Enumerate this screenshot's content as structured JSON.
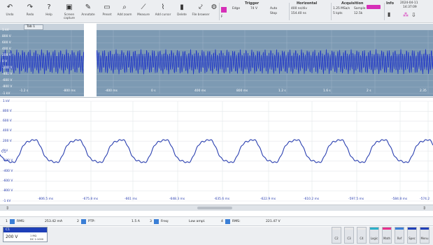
{
  "toolbar": {
    "buttons": [
      {
        "icon": "undo-icon",
        "glyph": "↶",
        "label": "Undo"
      },
      {
        "icon": "redo-icon",
        "glyph": "↷",
        "label": "Redo"
      },
      {
        "icon": "help-icon",
        "glyph": "?",
        "label": "Help"
      },
      {
        "icon": "screenshot-icon",
        "glyph": "▣",
        "label": "Screen capture"
      },
      {
        "icon": "annotate-icon",
        "glyph": "✎",
        "label": "Annotate"
      },
      {
        "icon": "preset-icon",
        "glyph": "▭",
        "label": "Preset"
      },
      {
        "icon": "zoom-icon",
        "glyph": "⌕",
        "label": "Add zoom"
      },
      {
        "icon": "measure-icon",
        "glyph": "⟋",
        "label": "Measure"
      },
      {
        "icon": "cursor-icon",
        "glyph": "⌇",
        "label": "Add cursor"
      },
      {
        "icon": "delete-icon",
        "glyph": "▮",
        "label": "Delete"
      },
      {
        "icon": "file-icon",
        "glyph": "⤦",
        "label": "File browser"
      },
      {
        "icon": "settings-icon",
        "glyph": "⚙",
        "label": "Settings"
      }
    ],
    "trigger": {
      "title": "Trigger",
      "source": "Edge",
      "level": "74 V",
      "mode_top": "Auto",
      "mode_bottom": "Stop",
      "slope": "F"
    },
    "horizontal": {
      "title": "Horizontal",
      "samples": "400 ns/div",
      "length": "154.40 ns"
    },
    "acquisition": {
      "title": "Acquisition",
      "rate": "1.25 MSa/s",
      "length": "5 kpts",
      "mode": "Sample",
      "count": "12.5k"
    },
    "info": {
      "title": "Info",
      "date": "2024-04-11",
      "time": "14:37:09"
    }
  },
  "overview": {
    "tab_label": "Tab 1",
    "y_labels": [
      "1 kV",
      "800 V",
      "600 V",
      "400 V",
      "200 V",
      "0 V",
      "-200 V",
      "-400 V",
      "-600 V",
      "-800 V",
      "-1 kV"
    ],
    "x_labels": [
      "-1.2 s",
      "-800 ms",
      "-400 ms",
      "0 s",
      "400 ms",
      "800 ms",
      "1.2 s",
      "1.6 s",
      "2 s",
      "2.35"
    ]
  },
  "main_plot": {
    "y_labels": [
      "1 kV",
      "800 V",
      "600 V",
      "400 V",
      "200 V",
      "0 V",
      "-200 V",
      "-400 V",
      "-600 V",
      "-800 V",
      "-1 kV"
    ],
    "x_labels": [
      "-806.5 ms",
      "-675.8 ms",
      "-661 ms",
      "-648.3 ms",
      "-635.6 ms",
      "-622.9 ms",
      "-610.2 ms",
      "-597.5 ms",
      "-584.8 ms",
      "-574.2"
    ],
    "trace_color": "#2a3fb0"
  },
  "measurements": [
    {
      "num": "1",
      "name": "RMS:",
      "value": "253.42 mA"
    },
    {
      "num": "2",
      "name": "PTP:",
      "value": "1.5 A"
    },
    {
      "num": "3",
      "name": "Freq:",
      "value": "Low ampl."
    },
    {
      "num": "4",
      "name": "RMS:",
      "value": "221.47 V"
    }
  ],
  "channel1": {
    "name": "C1",
    "scale": "200 V",
    "sub1": "1 MΩ",
    "sub2": "DC 1:1000"
  },
  "channel_buttons": [
    {
      "label": "C2",
      "color": "#e8e8e8"
    },
    {
      "label": "C3",
      "color": "#e8e8e8"
    },
    {
      "label": "C4",
      "color": "#e8e8e8"
    },
    {
      "label": "Logic",
      "color": "#2bb0c8"
    },
    {
      "label": "Math",
      "color": "#e82f8c"
    },
    {
      "label": "Ref",
      "color": "#3b7fd6"
    },
    {
      "label": "Spec",
      "color": "#1e3fb8"
    },
    {
      "label": "Menu",
      "color": "#1e3fb8"
    }
  ],
  "accent": "#d62fb8"
}
